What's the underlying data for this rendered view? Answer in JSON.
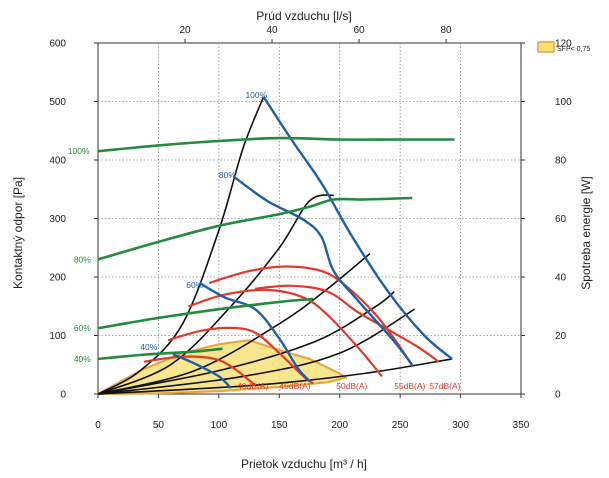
{
  "chart_data": {
    "type": "line",
    "title": "",
    "xlabel": "Prietok vzduchu [m³ / h]",
    "x2label": "Prúd vzduchu [l/s]",
    "ylabel": "Kontaktný odpor [Pa]",
    "y2label": "Spotreba energie [W]",
    "xlim": [
      0,
      350
    ],
    "ylim": [
      0,
      600
    ],
    "y2lim": [
      0,
      120
    ],
    "x_ticks": [
      "0",
      "50",
      "100",
      "150",
      "200",
      "250",
      "300",
      "350"
    ],
    "y_ticks": [
      "0",
      "100",
      "200",
      "300",
      "400",
      "500",
      "600"
    ],
    "x2_ticks": [
      "20",
      "40",
      "60",
      "80"
    ],
    "x2_tick_values": [
      20,
      40,
      60,
      80
    ],
    "y2_ticks": [
      "0",
      "20",
      "40",
      "60",
      "80",
      "100",
      "120"
    ],
    "grid": true,
    "legend": {
      "label": "SFP< 0,75",
      "color": "#f7e27a",
      "edge": "#e8a23a",
      "position": "top-right"
    },
    "pressure_curves": [
      {
        "name": "100%",
        "color": "#1f5fa8",
        "points": [
          [
            137,
            508
          ],
          [
            160,
            435
          ],
          [
            185,
            360
          ],
          [
            210,
            270
          ],
          [
            240,
            175
          ],
          [
            270,
            100
          ],
          [
            293,
            60
          ]
        ]
      },
      {
        "name": "80%",
        "color": "#1f5fa8",
        "points": [
          [
            112,
            372
          ],
          [
            140,
            330
          ],
          [
            170,
            298
          ],
          [
            185,
            268
          ],
          [
            195,
            210
          ],
          [
            215,
            160
          ],
          [
            245,
            90
          ],
          [
            260,
            50
          ]
        ]
      },
      {
        "name": "60%",
        "color": "#1f5fa8",
        "points": [
          [
            84,
            190
          ],
          [
            105,
            165
          ],
          [
            130,
            145
          ],
          [
            150,
            95
          ],
          [
            165,
            45
          ],
          [
            175,
            22
          ]
        ]
      },
      {
        "name": "40%",
        "color": "#1f5fa8",
        "points": [
          [
            62,
            68
          ],
          [
            80,
            52
          ],
          [
            100,
            30
          ],
          [
            110,
            10
          ]
        ]
      }
    ],
    "pressure_labels": [
      {
        "text": "100%",
        "x": 122,
        "y": 511,
        "color": "#1f5fa8"
      },
      {
        "text": "80%",
        "x": 100,
        "y": 374,
        "color": "#1f5fa8"
      },
      {
        "text": "60%",
        "x": 73,
        "y": 186,
        "color": "#1f5fa8"
      },
      {
        "text": "40%",
        "x": 35,
        "y": 80,
        "color": "#1f5fa8"
      }
    ],
    "power_curves": [
      {
        "name": "100%",
        "color": "#238a3e",
        "points": [
          [
            0,
            83
          ],
          [
            50,
            85
          ],
          [
            100,
            86.5
          ],
          [
            150,
            87.5
          ],
          [
            200,
            87
          ],
          [
            250,
            87
          ],
          [
            295,
            87
          ]
        ]
      },
      {
        "name": "80%",
        "color": "#238a3e",
        "points": [
          [
            0,
            46
          ],
          [
            50,
            52
          ],
          [
            100,
            57.5
          ],
          [
            150,
            61.5
          ],
          [
            175,
            64
          ],
          [
            195,
            66.5
          ],
          [
            220,
            66.5
          ],
          [
            260,
            67
          ]
        ]
      },
      {
        "name": "60%",
        "color": "#238a3e",
        "points": [
          [
            0,
            22.5
          ],
          [
            50,
            26
          ],
          [
            100,
            29
          ],
          [
            150,
            31.5
          ],
          [
            178,
            32.5
          ]
        ]
      },
      {
        "name": "40%",
        "color": "#238a3e",
        "points": [
          [
            0,
            12
          ],
          [
            40,
            13.5
          ],
          [
            80,
            14.5
          ],
          [
            103,
            15.5
          ]
        ]
      }
    ],
    "power_labels": [
      {
        "text": "100%",
        "x": -25,
        "y": 83,
        "color": "#238a3e"
      },
      {
        "text": "80%",
        "x": -20,
        "y": 46,
        "color": "#238a3e"
      },
      {
        "text": "60%",
        "x": -20,
        "y": 22.5,
        "color": "#238a3e"
      },
      {
        "text": "40%",
        "x": -20,
        "y": 12,
        "color": "#238a3e"
      }
    ],
    "noise_curves": [
      {
        "name": "40dB(A)",
        "color": "#e23a2a",
        "points": [
          [
            38,
            55
          ],
          [
            60,
            62
          ],
          [
            80,
            64
          ],
          [
            100,
            58
          ],
          [
            115,
            40
          ],
          [
            130,
            15
          ]
        ]
      },
      {
        "name": "45dB(A)",
        "color": "#e23a2a",
        "points": [
          [
            58,
            92
          ],
          [
            85,
            108
          ],
          [
            110,
            113
          ],
          [
            130,
            105
          ],
          [
            150,
            70
          ],
          [
            170,
            30
          ],
          [
            178,
            18
          ]
        ]
      },
      {
        "name": "50dB(A)",
        "color": "#e23a2a",
        "points": [
          [
            75,
            150
          ],
          [
            105,
            170
          ],
          [
            140,
            178
          ],
          [
            170,
            165
          ],
          [
            190,
            135
          ],
          [
            215,
            80
          ],
          [
            235,
            30
          ]
        ]
      },
      {
        "name": "55dB(A)",
        "color": "#e23a2a",
        "points": [
          [
            92,
            190
          ],
          [
            125,
            210
          ],
          [
            155,
            218
          ],
          [
            185,
            210
          ],
          [
            205,
            185
          ],
          [
            230,
            135
          ],
          [
            250,
            80
          ],
          [
            260,
            48
          ]
        ]
      },
      {
        "name": "57dB(A)",
        "color": "#e23a2a",
        "points": [
          [
            130,
            180
          ],
          [
            160,
            185
          ],
          [
            190,
            175
          ],
          [
            215,
            140
          ],
          [
            240,
            110
          ],
          [
            265,
            80
          ],
          [
            282,
            55
          ]
        ]
      }
    ],
    "noise_labels": [
      {
        "text": "40dB(A)",
        "x": 128
      },
      {
        "text": "45dB(A)",
        "x": 163
      },
      {
        "text": "50dB(A)",
        "x": 210
      },
      {
        "text": "55dB(A)",
        "x": 258
      },
      {
        "text": "57dB(A)",
        "x": 287
      }
    ],
    "system_curves": [
      {
        "points": [
          [
            0,
            0
          ],
          [
            35,
            40
          ],
          [
            70,
            120
          ],
          [
            100,
            280
          ],
          [
            120,
            420
          ],
          [
            137,
            508
          ]
        ]
      },
      {
        "points": [
          [
            0,
            0
          ],
          [
            60,
            50
          ],
          [
            110,
            150
          ],
          [
            150,
            250
          ],
          [
            175,
            330
          ],
          [
            195,
            340
          ]
        ]
      },
      {
        "points": [
          [
            0,
            0
          ],
          [
            80,
            40
          ],
          [
            150,
            120
          ],
          [
            190,
            180
          ],
          [
            225,
            240
          ]
        ]
      },
      {
        "points": [
          [
            0,
            0
          ],
          [
            100,
            40
          ],
          [
            180,
            90
          ],
          [
            230,
            150
          ],
          [
            245,
            175
          ]
        ]
      },
      {
        "points": [
          [
            0,
            0
          ],
          [
            120,
            30
          ],
          [
            200,
            70
          ],
          [
            262,
            145
          ]
        ]
      },
      {
        "points": [
          [
            0,
            0
          ],
          [
            130,
            15
          ],
          [
            220,
            35
          ],
          [
            293,
            60
          ]
        ]
      }
    ],
    "sfp_region": {
      "color": "#f7e27a",
      "edge": "#e8a23a",
      "points": [
        [
          0,
          0
        ],
        [
          35,
          40
        ],
        [
          70,
          70
        ],
        [
          100,
          85
        ],
        [
          125,
          92
        ],
        [
          150,
          75
        ],
        [
          175,
          60
        ],
        [
          200,
          35
        ],
        [
          205,
          28
        ],
        [
          190,
          20
        ],
        [
          150,
          12
        ],
        [
          100,
          5
        ],
        [
          50,
          1
        ]
      ]
    }
  }
}
